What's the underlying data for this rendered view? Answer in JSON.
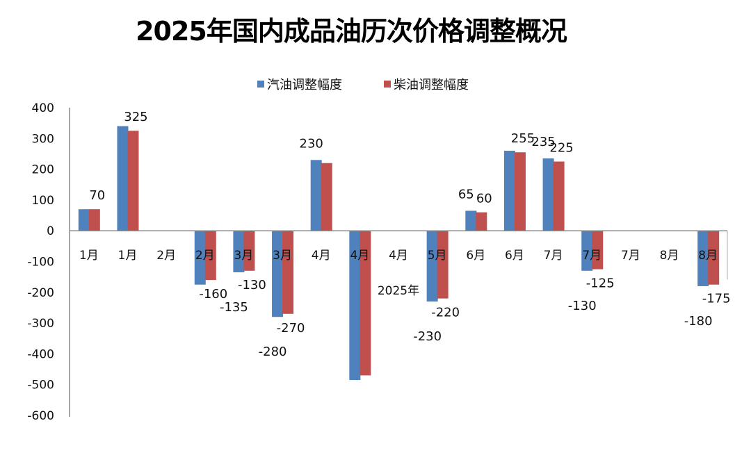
{
  "chart_data": {
    "type": "bar",
    "title": "2025年国内成品油历次价格调整概况",
    "categories": [
      "1月",
      "1月",
      "2月",
      "2月",
      "3月",
      "3月",
      "4月",
      "4月",
      "4月",
      "5月",
      "6月",
      "6月",
      "7月",
      "7月",
      "7月",
      "8月",
      "8月"
    ],
    "series": [
      {
        "name": "汽油调整幅度",
        "color": "#4f81bd",
        "values": [
          70,
          340,
          null,
          -175,
          -135,
          -280,
          230,
          -485,
          null,
          -230,
          65,
          260,
          235,
          -130,
          null,
          null,
          -180
        ],
        "labels": [
          null,
          null,
          null,
          null,
          "-135",
          "-280",
          "230",
          null,
          null,
          "-230",
          "65",
          null,
          "235",
          "-130",
          null,
          null,
          "-180"
        ]
      },
      {
        "name": "柴油调整幅度",
        "color": "#c0504d",
        "values": [
          70,
          325,
          null,
          -160,
          -130,
          -270,
          220,
          -470,
          null,
          -220,
          60,
          255,
          225,
          -125,
          null,
          null,
          -175
        ],
        "labels": [
          "70",
          "325",
          null,
          "-160",
          "-130",
          "-270",
          null,
          null,
          null,
          "-220",
          "60",
          "255",
          "225",
          "-125",
          null,
          null,
          "-175"
        ]
      }
    ],
    "annotation": "2025年",
    "ylim": [
      -600,
      400
    ],
    "yticks": [
      "400",
      "300",
      "200",
      "100",
      "0",
      "-100",
      "-200",
      "-300",
      "-400",
      "-500",
      "-600"
    ],
    "grid": false,
    "legend": "top"
  }
}
